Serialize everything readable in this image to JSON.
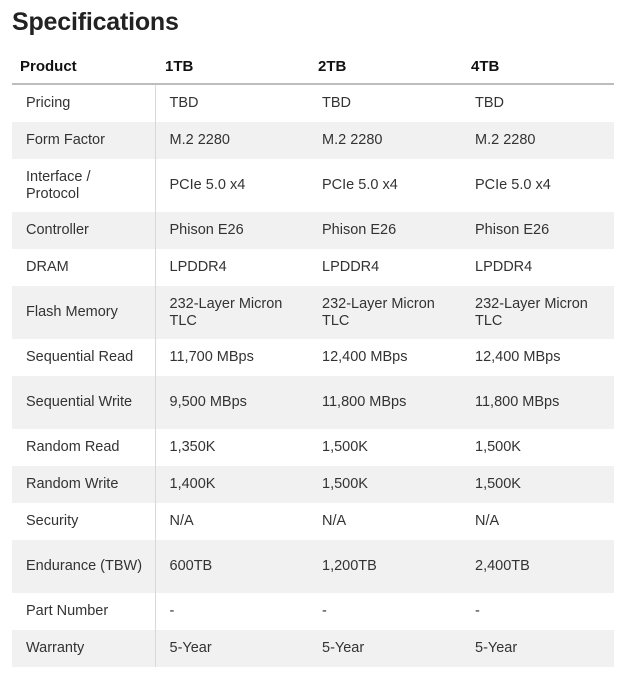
{
  "title": "Specifications",
  "headers": [
    "Product",
    "1TB",
    "2TB",
    "4TB"
  ],
  "rows": [
    {
      "label": "Pricing",
      "values": [
        "TBD",
        "TBD",
        "TBD"
      ]
    },
    {
      "label": "Form Factor",
      "values": [
        "M.2 2280",
        "M.2 2280",
        "M.2 2280"
      ]
    },
    {
      "label": "Interface / Protocol",
      "values": [
        "PCIe 5.0 x4",
        "PCIe 5.0 x4",
        "PCIe 5.0 x4"
      ]
    },
    {
      "label": "Controller",
      "values": [
        "Phison E26",
        "Phison E26",
        "Phison E26"
      ]
    },
    {
      "label": "DRAM",
      "values": [
        "LPDDR4",
        "LPDDR4",
        "LPDDR4"
      ]
    },
    {
      "label": "Flash Memory",
      "values": [
        "232-Layer Micron TLC",
        "232-Layer Micron TLC",
        "232-Layer Micron TLC"
      ]
    },
    {
      "label": "Sequential Read",
      "values": [
        "11,700 MBps",
        "12,400 MBps",
        "12,400 MBps"
      ]
    },
    {
      "label": "Sequential Write",
      "values": [
        "9,500 MBps",
        "11,800 MBps",
        "11,800 MBps"
      ]
    },
    {
      "label": "Random Read",
      "values": [
        "1,350K",
        "1,500K",
        "1,500K"
      ]
    },
    {
      "label": "Random Write",
      "values": [
        "1,400K",
        "1,500K",
        "1,500K"
      ]
    },
    {
      "label": "Security",
      "values": [
        "N/A",
        "N/A",
        "N/A"
      ]
    },
    {
      "label": "Endurance (TBW)",
      "values": [
        "600TB",
        "1,200TB",
        "2,400TB"
      ]
    },
    {
      "label": "Part Number",
      "values": [
        "-",
        "-",
        "-"
      ]
    },
    {
      "label": "Warranty",
      "values": [
        "5-Year",
        "5-Year",
        "5-Year"
      ]
    }
  ]
}
